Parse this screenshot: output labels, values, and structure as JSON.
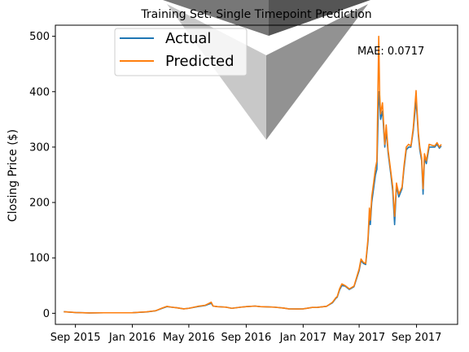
{
  "chart_data": {
    "type": "line",
    "title": "Training Set: Single Timepoint Prediction",
    "xlabel": "",
    "ylabel": "Closing Price ($)",
    "ylim": [
      -20,
      520
    ],
    "xlim": [
      "2015-07-20",
      "2017-11-28"
    ],
    "yticks": [
      0,
      100,
      200,
      300,
      400,
      500
    ],
    "xticks": [
      {
        "date": "2015-09-01",
        "label": "Sep 2015"
      },
      {
        "date": "2016-01-01",
        "label": "Jan 2016"
      },
      {
        "date": "2016-05-01",
        "label": "May 2016"
      },
      {
        "date": "2016-09-01",
        "label": "Sep 2016"
      },
      {
        "date": "2017-01-01",
        "label": "Jan 2017"
      },
      {
        "date": "2017-05-01",
        "label": "May 2017"
      },
      {
        "date": "2017-09-01",
        "label": "Sep 2017"
      }
    ],
    "annotation": "MAE: 0.0717",
    "legend_position": "top-left",
    "grid": false,
    "series": [
      {
        "name": "Actual",
        "color": "#1f77b4",
        "points": [
          [
            "2015-08-07",
            2.8
          ],
          [
            "2015-09-01",
            1.3
          ],
          [
            "2015-10-01",
            0.7
          ],
          [
            "2015-11-01",
            0.9
          ],
          [
            "2015-12-01",
            0.9
          ],
          [
            "2016-01-01",
            0.95
          ],
          [
            "2016-02-01",
            2.5
          ],
          [
            "2016-02-20",
            4.5
          ],
          [
            "2016-03-05",
            9
          ],
          [
            "2016-03-15",
            12
          ],
          [
            "2016-03-25",
            11
          ],
          [
            "2016-04-05",
            10
          ],
          [
            "2016-04-20",
            8
          ],
          [
            "2016-05-01",
            9
          ],
          [
            "2016-05-20",
            12
          ],
          [
            "2016-06-05",
            14
          ],
          [
            "2016-06-18",
            18
          ],
          [
            "2016-06-22",
            13
          ],
          [
            "2016-07-01",
            12
          ],
          [
            "2016-07-20",
            11
          ],
          [
            "2016-08-01",
            9
          ],
          [
            "2016-08-20",
            11
          ],
          [
            "2016-09-01",
            12
          ],
          [
            "2016-09-20",
            13
          ],
          [
            "2016-10-01",
            12
          ],
          [
            "2016-10-20",
            11.5
          ],
          [
            "2016-11-01",
            11
          ],
          [
            "2016-11-20",
            9.5
          ],
          [
            "2016-12-01",
            8
          ],
          [
            "2016-12-20",
            7.8
          ],
          [
            "2017-01-01",
            8
          ],
          [
            "2017-01-20",
            10.5
          ],
          [
            "2017-02-01",
            10.7
          ],
          [
            "2017-02-20",
            12.5
          ],
          [
            "2017-03-05",
            19
          ],
          [
            "2017-03-12",
            27
          ],
          [
            "2017-03-15",
            29
          ],
          [
            "2017-03-20",
            42
          ],
          [
            "2017-03-25",
            50
          ],
          [
            "2017-04-01",
            49
          ],
          [
            "2017-04-10",
            43
          ],
          [
            "2017-04-20",
            48
          ],
          [
            "2017-05-01",
            77
          ],
          [
            "2017-05-05",
            95
          ],
          [
            "2017-05-10",
            90
          ],
          [
            "2017-05-15",
            88
          ],
          [
            "2017-05-20",
            130
          ],
          [
            "2017-05-23",
            175
          ],
          [
            "2017-05-25",
            160
          ],
          [
            "2017-05-28",
            200
          ],
          [
            "2017-06-01",
            225
          ],
          [
            "2017-06-05",
            250
          ],
          [
            "2017-06-08",
            260
          ],
          [
            "2017-06-12",
            400
          ],
          [
            "2017-06-14",
            380
          ],
          [
            "2017-06-16",
            350
          ],
          [
            "2017-06-20",
            365
          ],
          [
            "2017-06-25",
            300
          ],
          [
            "2017-06-28",
            330
          ],
          [
            "2017-07-02",
            290
          ],
          [
            "2017-07-08",
            250
          ],
          [
            "2017-07-12",
            220
          ],
          [
            "2017-07-16",
            160
          ],
          [
            "2017-07-20",
            230
          ],
          [
            "2017-07-25",
            210
          ],
          [
            "2017-08-01",
            225
          ],
          [
            "2017-08-05",
            260
          ],
          [
            "2017-08-10",
            295
          ],
          [
            "2017-08-15",
            300
          ],
          [
            "2017-08-20",
            300
          ],
          [
            "2017-08-25",
            330
          ],
          [
            "2017-08-31",
            385
          ],
          [
            "2017-09-02",
            360
          ],
          [
            "2017-09-05",
            320
          ],
          [
            "2017-09-08",
            295
          ],
          [
            "2017-09-12",
            275
          ],
          [
            "2017-09-15",
            215
          ],
          [
            "2017-09-18",
            280
          ],
          [
            "2017-09-22",
            270
          ],
          [
            "2017-09-28",
            300
          ],
          [
            "2017-10-05",
            300
          ],
          [
            "2017-10-10",
            300
          ],
          [
            "2017-10-15",
            305
          ],
          [
            "2017-10-20",
            298
          ],
          [
            "2017-10-24",
            302
          ]
        ]
      },
      {
        "name": "Predicted",
        "color": "#ff7f0e",
        "points": [
          [
            "2015-08-07",
            2.8
          ],
          [
            "2015-09-01",
            1.3
          ],
          [
            "2015-10-01",
            0.7
          ],
          [
            "2015-11-01",
            0.9
          ],
          [
            "2015-12-01",
            0.9
          ],
          [
            "2016-01-01",
            0.95
          ],
          [
            "2016-02-01",
            2.6
          ],
          [
            "2016-02-20",
            4.6
          ],
          [
            "2016-03-05",
            9.5
          ],
          [
            "2016-03-15",
            12.5
          ],
          [
            "2016-03-25",
            11
          ],
          [
            "2016-04-05",
            10
          ],
          [
            "2016-04-20",
            8
          ],
          [
            "2016-05-01",
            9
          ],
          [
            "2016-05-20",
            12.5
          ],
          [
            "2016-06-05",
            14.5
          ],
          [
            "2016-06-18",
            20
          ],
          [
            "2016-06-22",
            13
          ],
          [
            "2016-07-01",
            12
          ],
          [
            "2016-07-20",
            11
          ],
          [
            "2016-08-01",
            9
          ],
          [
            "2016-08-20",
            11
          ],
          [
            "2016-09-01",
            12
          ],
          [
            "2016-09-20",
            13
          ],
          [
            "2016-10-01",
            12
          ],
          [
            "2016-10-20",
            11.5
          ],
          [
            "2016-11-01",
            11
          ],
          [
            "2016-11-20",
            9.5
          ],
          [
            "2016-12-01",
            8
          ],
          [
            "2016-12-20",
            7.8
          ],
          [
            "2017-01-01",
            8
          ],
          [
            "2017-01-20",
            10.5
          ],
          [
            "2017-02-01",
            10.7
          ],
          [
            "2017-02-20",
            12.5
          ],
          [
            "2017-03-05",
            20
          ],
          [
            "2017-03-12",
            28
          ],
          [
            "2017-03-15",
            30
          ],
          [
            "2017-03-20",
            44
          ],
          [
            "2017-03-25",
            53
          ],
          [
            "2017-04-01",
            50
          ],
          [
            "2017-04-10",
            44
          ],
          [
            "2017-04-20",
            49
          ],
          [
            "2017-05-01",
            80
          ],
          [
            "2017-05-05",
            98
          ],
          [
            "2017-05-10",
            92
          ],
          [
            "2017-05-15",
            90
          ],
          [
            "2017-05-20",
            135
          ],
          [
            "2017-05-23",
            190
          ],
          [
            "2017-05-25",
            168
          ],
          [
            "2017-05-28",
            210
          ],
          [
            "2017-06-01",
            235
          ],
          [
            "2017-06-05",
            262
          ],
          [
            "2017-06-08",
            275
          ],
          [
            "2017-06-12",
            500
          ],
          [
            "2017-06-14",
            395
          ],
          [
            "2017-06-16",
            360
          ],
          [
            "2017-06-20",
            380
          ],
          [
            "2017-06-25",
            305
          ],
          [
            "2017-06-28",
            340
          ],
          [
            "2017-07-02",
            295
          ],
          [
            "2017-07-08",
            255
          ],
          [
            "2017-07-12",
            228
          ],
          [
            "2017-07-16",
            175
          ],
          [
            "2017-07-20",
            235
          ],
          [
            "2017-07-25",
            215
          ],
          [
            "2017-08-01",
            228
          ],
          [
            "2017-08-05",
            265
          ],
          [
            "2017-08-10",
            300
          ],
          [
            "2017-08-15",
            305
          ],
          [
            "2017-08-20",
            302
          ],
          [
            "2017-08-25",
            335
          ],
          [
            "2017-08-31",
            402
          ],
          [
            "2017-09-02",
            368
          ],
          [
            "2017-09-05",
            325
          ],
          [
            "2017-09-08",
            300
          ],
          [
            "2017-09-12",
            280
          ],
          [
            "2017-09-15",
            225
          ],
          [
            "2017-09-18",
            288
          ],
          [
            "2017-09-22",
            275
          ],
          [
            "2017-09-28",
            305
          ],
          [
            "2017-10-05",
            303
          ],
          [
            "2017-10-10",
            302
          ],
          [
            "2017-10-15",
            308
          ],
          [
            "2017-10-20",
            300
          ],
          [
            "2017-10-24",
            305
          ]
        ]
      }
    ]
  }
}
